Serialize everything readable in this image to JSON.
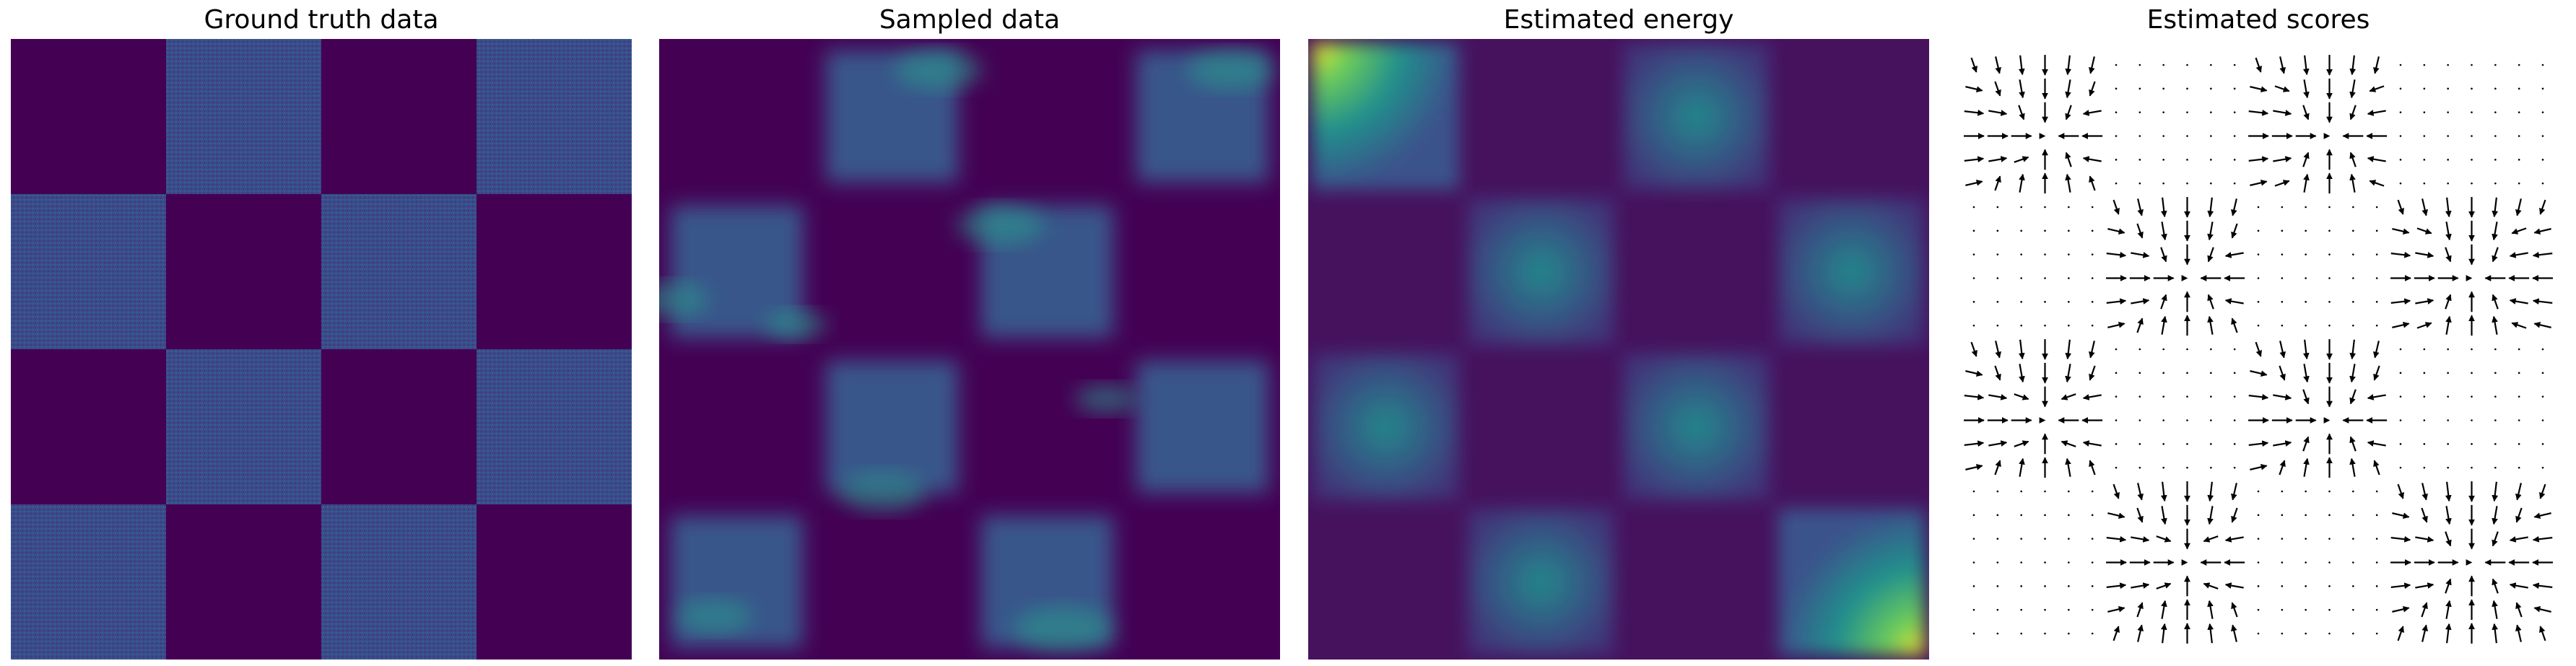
{
  "chart_data": [
    {
      "type": "heatmap",
      "title": "Ground truth data",
      "grid": false,
      "colormap": "viridis",
      "checkerboard": {
        "rows": 4,
        "cols": 4,
        "filled_cells": [
          [
            0,
            1
          ],
          [
            0,
            3
          ],
          [
            1,
            0
          ],
          [
            1,
            2
          ],
          [
            2,
            1
          ],
          [
            2,
            3
          ],
          [
            3,
            0
          ],
          [
            3,
            2
          ]
        ]
      },
      "colors": {
        "empty": "#440154",
        "filled": "#3b4a8a"
      }
    },
    {
      "type": "heatmap",
      "title": "Sampled data",
      "grid": false,
      "colormap": "viridis",
      "checkerboard": {
        "rows": 4,
        "cols": 4,
        "filled_cells": [
          [
            0,
            1
          ],
          [
            0,
            3
          ],
          [
            1,
            0
          ],
          [
            1,
            2
          ],
          [
            2,
            1
          ],
          [
            2,
            3
          ],
          [
            3,
            0
          ],
          [
            3,
            2
          ]
        ]
      },
      "colors": {
        "empty": "#440154",
        "filled": "#3b528b",
        "hot": "#2a9d8e"
      }
    },
    {
      "type": "heatmap",
      "title": "Estimated energy",
      "grid": false,
      "colormap": "viridis",
      "checkerboard": {
        "rows": 4,
        "cols": 4,
        "bright_cells": [
          [
            0,
            0
          ],
          [
            0,
            2
          ],
          [
            1,
            1
          ],
          [
            1,
            3
          ],
          [
            2,
            0
          ],
          [
            2,
            2
          ],
          [
            3,
            1
          ],
          [
            3,
            3
          ]
        ]
      },
      "colors": {
        "low": "#440154",
        "mid": "#21908d",
        "high": "#fde725"
      }
    },
    {
      "type": "quiver",
      "title": "Estimated scores",
      "grid": false,
      "arrow_grid": {
        "rows": 25,
        "cols": 25
      },
      "colors": {
        "arrow": "#000000"
      }
    }
  ]
}
